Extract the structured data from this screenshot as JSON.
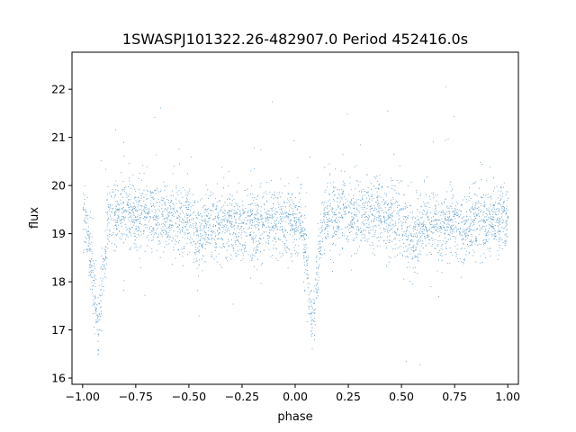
{
  "chart_data": {
    "type": "scatter",
    "title": "1SWASPJ101322.26-482907.0 Period 452416.0s",
    "xlabel": "phase",
    "ylabel": "flux",
    "xlim": [
      -1.05,
      1.05
    ],
    "ylim": [
      15.87,
      22.77
    ],
    "xticks": [
      -1.0,
      -0.75,
      -0.5,
      -0.25,
      0.0,
      0.25,
      0.5,
      0.75,
      1.0
    ],
    "xtick_labels": [
      "−1.00",
      "−0.75",
      "−0.50",
      "−0.25",
      "0.00",
      "0.25",
      "0.50",
      "0.75",
      "1.00"
    ],
    "yticks": [
      16,
      17,
      18,
      19,
      20,
      21,
      22
    ],
    "ytick_labels": [
      "16",
      "17",
      "18",
      "19",
      "20",
      "21",
      "22"
    ],
    "grid": false,
    "legend": "none",
    "marker_color": "#1f77b4",
    "light_curve": {
      "phase_range": [
        -1.0,
        1.0
      ],
      "baseline_flux": 19.3,
      "baseline_scatter": 0.35,
      "primary_eclipse_phases": [
        -0.93,
        0.08
      ],
      "primary_eclipse_min_flux": 16.9,
      "secondary_dip_phases": [
        -0.45,
        0.55
      ],
      "secondary_dip_flux": 18.9,
      "outlier_range": [
        16.2,
        22.5
      ],
      "approx_point_count": 22000
    }
  }
}
